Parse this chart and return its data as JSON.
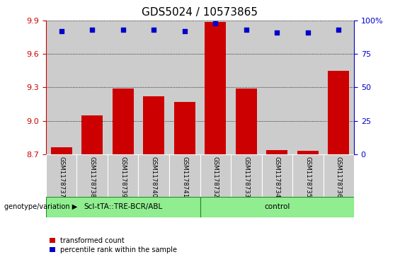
{
  "title": "GDS5024 / 10573865",
  "samples": [
    "GSM1178737",
    "GSM1178738",
    "GSM1178739",
    "GSM1178740",
    "GSM1178741",
    "GSM1178732",
    "GSM1178733",
    "GSM1178734",
    "GSM1178735",
    "GSM1178736"
  ],
  "red_values": [
    8.76,
    9.05,
    9.29,
    9.22,
    9.17,
    9.89,
    9.29,
    8.74,
    8.73,
    9.45
  ],
  "blue_values": [
    92,
    93,
    93,
    93,
    92,
    98,
    93,
    91,
    91,
    93
  ],
  "ylim_left": [
    8.7,
    9.9
  ],
  "ylim_right": [
    0,
    100
  ],
  "yticks_left": [
    8.7,
    9.0,
    9.3,
    9.6,
    9.9
  ],
  "yticks_right": [
    0,
    25,
    50,
    75,
    100
  ],
  "group1_label": "ScI-tTA::TRE-BCR/ABL",
  "group2_label": "control",
  "group1_count": 5,
  "group2_count": 5,
  "xlabel_area": "genotype/variation",
  "legend_red": "transformed count",
  "legend_blue": "percentile rank within the sample",
  "bar_color": "#cc0000",
  "dot_color": "#0000cc",
  "group_bg": "#90ee90",
  "bar_bg": "#cccccc",
  "title_fontsize": 11,
  "tick_fontsize": 8,
  "bar_width": 0.7
}
